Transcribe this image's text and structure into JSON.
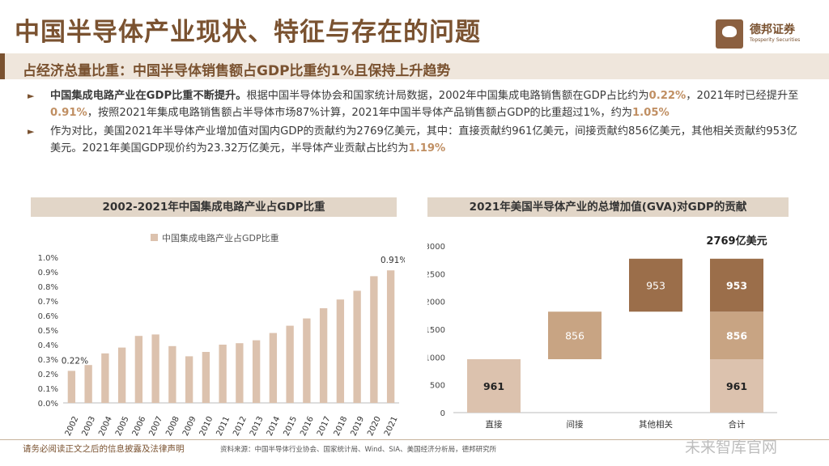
{
  "header": {
    "title": "中国半导体产业现状、特征与存在的问题",
    "logo_name": "德邦证券",
    "logo_sub": "Topsperity Securities",
    "subtitle": "占经济总量比重：中国半导体销售额占GDP比重约1%且保持上升趋势"
  },
  "bullets": [
    {
      "lead": "中国集成电路产业在GDP比重不断提升。",
      "t1": "根据中国半导体协会和国家统计局数据，2002年中国集成电路销售额在GDP占比约为",
      "e1": "0.22%",
      "t2": "，2021年时已经提升至",
      "e2": "0.91%",
      "t3": "，按照2021年集成电路销售额占半导体市场87%计算，2021年中国半导体产品销售额占GDP的比重超过1%，约为",
      "e3": "1.05%"
    },
    {
      "t1": "作为对比，美国2021年半导体产业增加值对国内GDP的贡献约为2769亿美元，其中：直接贡献约961亿美元，间接贡献约856亿美元，其他相关贡献约953亿美元。2021年美国GDP现价约为23.32万亿美元，半导体产业贡献占比约为",
      "e1": "1.19%"
    }
  ],
  "chart_data": [
    {
      "type": "bar",
      "title": "2002-2021年中国集成电路产业占GDP比重",
      "legend": "中国集成电路产业占GDP比重",
      "categories": [
        "2002",
        "2003",
        "2004",
        "2005",
        "2006",
        "2007",
        "2008",
        "2009",
        "2010",
        "2011",
        "2012",
        "2013",
        "2014",
        "2015",
        "2016",
        "2017",
        "2018",
        "2019",
        "2020",
        "2021"
      ],
      "values": [
        0.22,
        0.26,
        0.34,
        0.38,
        0.46,
        0.47,
        0.39,
        0.32,
        0.35,
        0.4,
        0.41,
        0.43,
        0.48,
        0.53,
        0.58,
        0.65,
        0.71,
        0.77,
        0.87,
        0.91
      ],
      "value_labels": {
        "0": "0.22%",
        "19": "0.91%"
      },
      "yticks": [
        "0.0%",
        "0.1%",
        "0.2%",
        "0.3%",
        "0.4%",
        "0.5%",
        "0.6%",
        "0.7%",
        "0.8%",
        "0.9%",
        "1.0%"
      ],
      "ylim": [
        0,
        1.0
      ],
      "color": "#dcc2ae"
    },
    {
      "type": "waterfall",
      "title": "2021年美国半导体产业的总增加值(GVA)对GDP的贡献",
      "total_label": "2769亿美元",
      "categories": [
        "直接",
        "间接",
        "其他相关",
        "合计"
      ],
      "steps": [
        {
          "name": "直接",
          "value": 961,
          "color": "#dcc2ae"
        },
        {
          "name": "间接",
          "value": 856,
          "color": "#c8a483"
        },
        {
          "name": "其他相关",
          "value": 953,
          "color": "#9b6e4a"
        }
      ],
      "yticks": [
        "0",
        "500",
        "1000",
        "1500",
        "2000",
        "2500",
        "3000"
      ],
      "ylim": [
        0,
        3000
      ]
    }
  ],
  "footer": {
    "disclaimer": "请务必阅读正文之后的信息披露及法律声明",
    "source": "资料来源：中国半导体行业协会、国家统计局、Wind、SIA、美国经济分析局，德邦研究所",
    "watermark": "未来智库官网"
  }
}
